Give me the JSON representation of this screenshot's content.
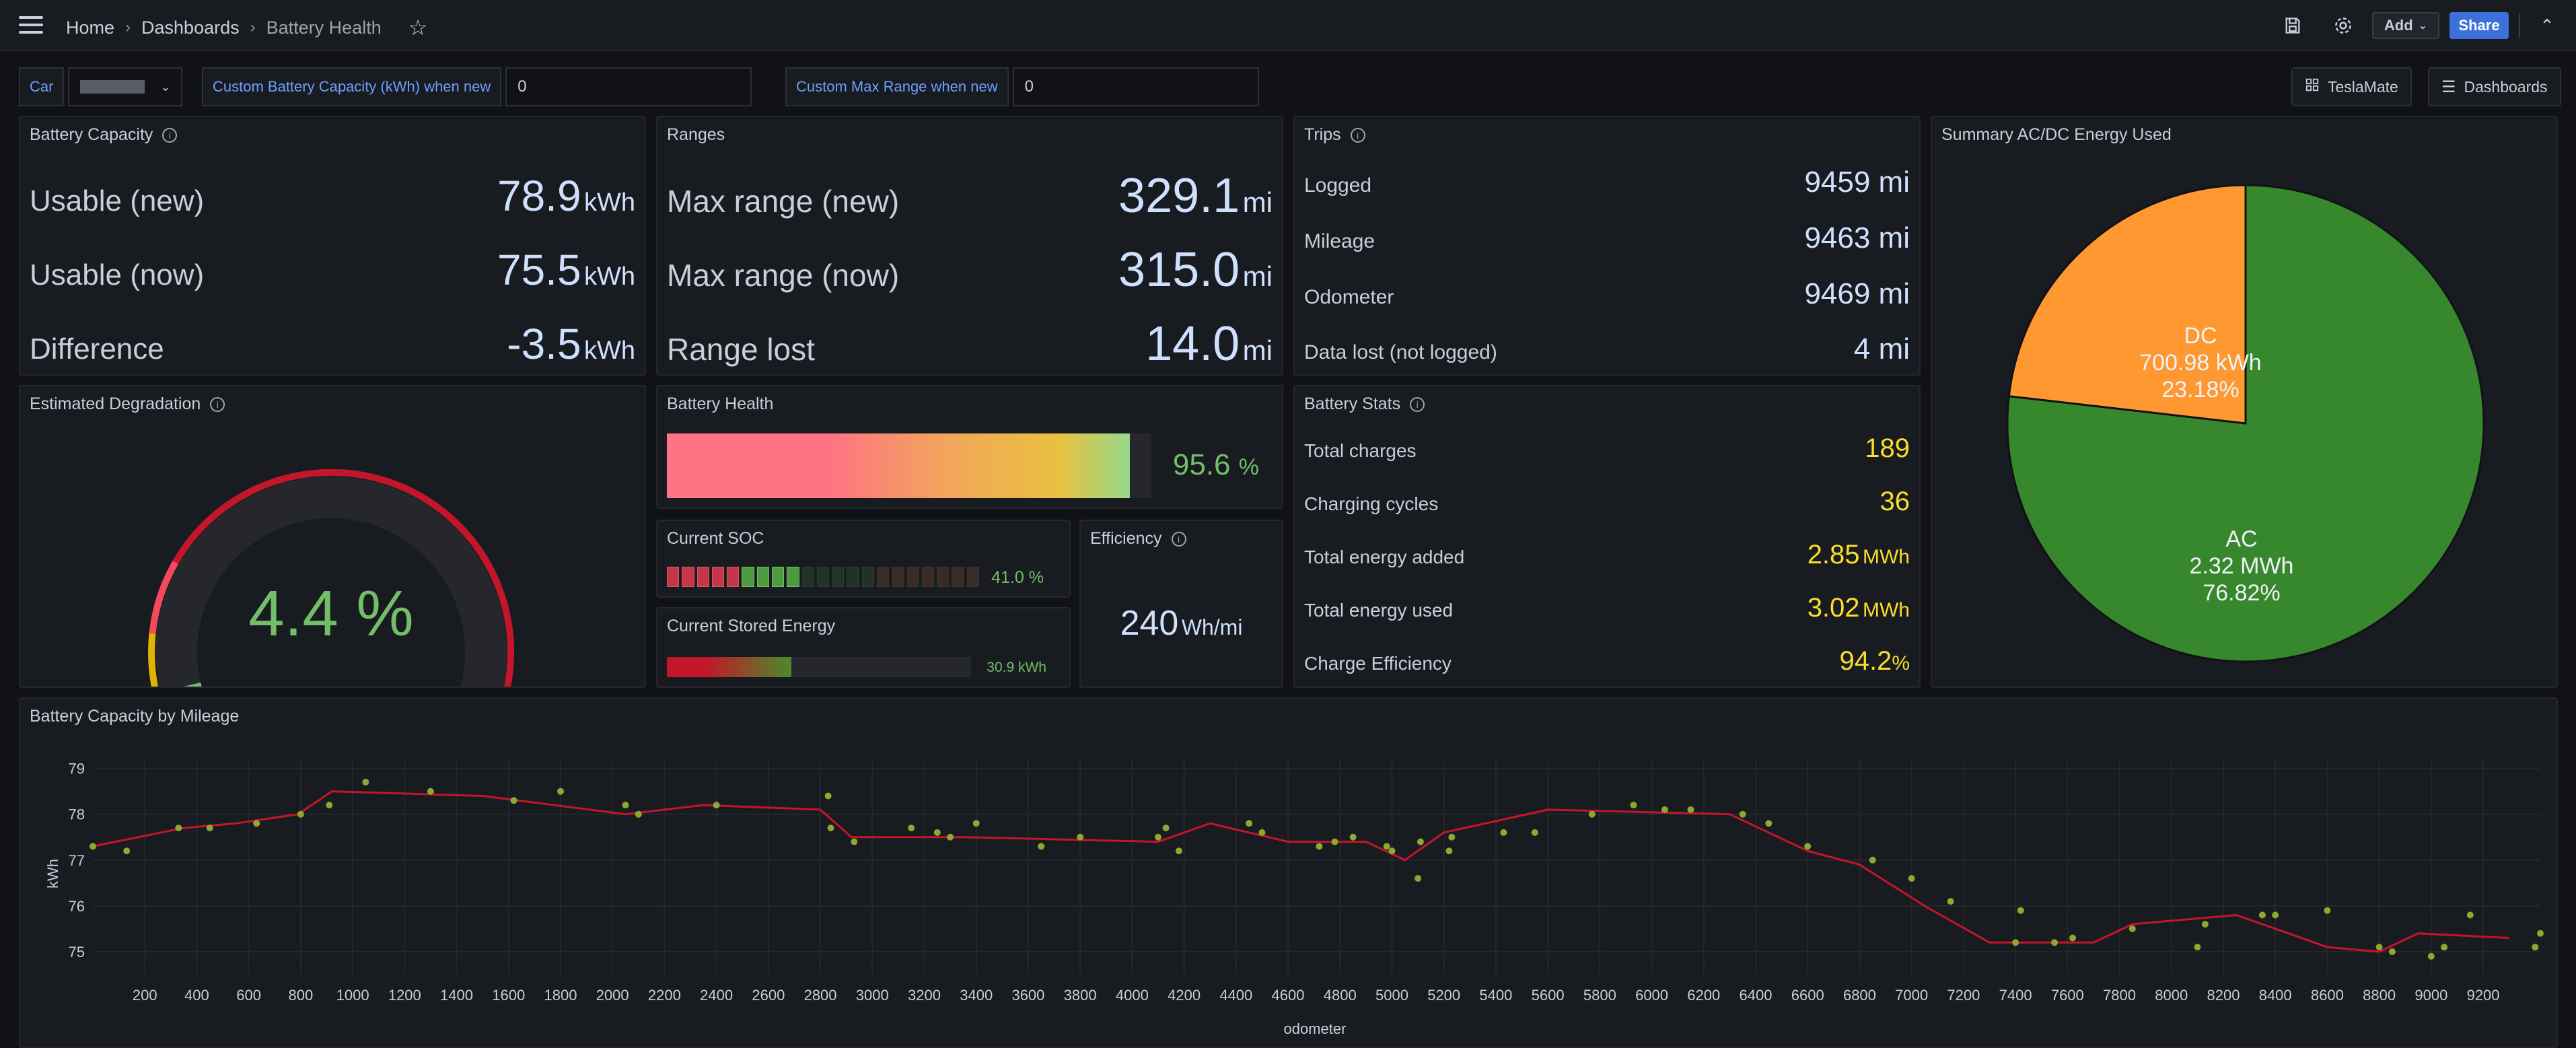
{
  "header": {
    "crumb_home": "Home",
    "crumb_dashboards": "Dashboards",
    "crumb_current": "Battery Health",
    "add_label": "Add",
    "share_label": "Share"
  },
  "vars": {
    "car_label": "Car",
    "car_value": "",
    "capacity_label": "Custom Battery Capacity (kWh) when new",
    "capacity_value": "0",
    "range_label": "Custom Max Range when new",
    "range_value": "0"
  },
  "links": {
    "teslamate": "TeslaMate",
    "dashboards": "Dashboards"
  },
  "capacity": {
    "title": "Battery Capacity",
    "rows": [
      {
        "label": "Usable (new)",
        "value": "78.9",
        "unit": "kWh"
      },
      {
        "label": "Usable (now)",
        "value": "75.5",
        "unit": "kWh"
      },
      {
        "label": "Difference",
        "value": "-3.5",
        "unit": "kWh"
      }
    ]
  },
  "ranges": {
    "title": "Ranges",
    "rows": [
      {
        "label": "Max range (new)",
        "value": "329.1",
        "unit": "mi"
      },
      {
        "label": "Max range (now)",
        "value": "315.0",
        "unit": "mi"
      },
      {
        "label": "Range lost",
        "value": "14.0",
        "unit": "mi"
      }
    ]
  },
  "trips": {
    "title": "Trips",
    "rows": [
      {
        "label": "Logged",
        "value": "9459 mi"
      },
      {
        "label": "Mileage",
        "value": "9463 mi"
      },
      {
        "label": "Odometer",
        "value": "9469 mi"
      },
      {
        "label": "Data lost (not logged)",
        "value": "4 mi"
      }
    ]
  },
  "summary": {
    "title": "Summary AC/DC Energy Used",
    "slices": [
      {
        "name": "AC",
        "value_text": "2.32 MWh",
        "pct_text": "76.82%",
        "pct": 76.82,
        "color": "#37872d"
      },
      {
        "name": "DC",
        "value_text": "700.98 kWh",
        "pct_text": "23.18%",
        "pct": 23.18,
        "color": "#ff9830"
      }
    ]
  },
  "degradation": {
    "title": "Estimated Degradation",
    "value": "4.4 %",
    "fraction": 0.044
  },
  "health": {
    "title": "Battery Health",
    "value": "95.6",
    "unit": "%",
    "fraction": 0.956
  },
  "soc": {
    "title": "Current SOC",
    "value": "41.0 %",
    "fraction": 0.41
  },
  "stored": {
    "title": "Current Stored Energy",
    "value": "30.9 kWh",
    "fraction": 0.41
  },
  "efficiency": {
    "title": "Efficiency",
    "value": "240",
    "unit": "Wh/mi"
  },
  "stats": {
    "title": "Battery Stats",
    "rows": [
      {
        "label": "Total charges",
        "value": "189",
        "unit": ""
      },
      {
        "label": "Charging cycles",
        "value": "36",
        "unit": ""
      },
      {
        "label": "Total energy added",
        "value": "2.85",
        "unit": "MWh"
      },
      {
        "label": "Total energy used",
        "value": "3.02",
        "unit": "MWh"
      },
      {
        "label": "Charge Efficiency",
        "value": "94.2",
        "unit": "%"
      }
    ]
  },
  "colors": {
    "accent": "#3d71d9",
    "green": "#73bf69",
    "yellow": "#fade2a",
    "red": "#c4162a",
    "blue_text": "#cfe0ff"
  },
  "chart_data": {
    "type": "line",
    "title": "Battery Capacity by Mileage",
    "xlabel": "odometer",
    "ylabel": "kWh",
    "xlim": [
      0,
      9420
    ],
    "ylim": [
      74.5,
      79.2
    ],
    "xticks": [
      "200",
      "400",
      "600",
      "800",
      "1000",
      "1200",
      "1400",
      "1600",
      "1800",
      "2000",
      "2200",
      "2400",
      "2600",
      "2800",
      "3000",
      "3200",
      "3400",
      "3600",
      "3800",
      "4000",
      "4200",
      "4400",
      "4600",
      "4800",
      "5000",
      "5200",
      "5400",
      "5600",
      "5800",
      "6000",
      "6200",
      "6400",
      "6600",
      "6800",
      "7000",
      "7200",
      "7400",
      "7600",
      "7800",
      "8000",
      "8200",
      "8400",
      "8600",
      "8800",
      "9000",
      "9200"
    ],
    "yticks": [
      "75",
      "76",
      "77",
      "78",
      "79"
    ],
    "line": [
      [
        0,
        77.3
      ],
      [
        350,
        77.7
      ],
      [
        550,
        77.8
      ],
      [
        790,
        78.0
      ],
      [
        920,
        78.5
      ],
      [
        1500,
        78.4
      ],
      [
        2050,
        78.0
      ],
      [
        2350,
        78.2
      ],
      [
        2800,
        78.1
      ],
      [
        2920,
        77.5
      ],
      [
        3350,
        77.5
      ],
      [
        4100,
        77.4
      ],
      [
        4300,
        77.8
      ],
      [
        4600,
        77.4
      ],
      [
        4900,
        77.4
      ],
      [
        5050,
        77.0
      ],
      [
        5200,
        77.6
      ],
      [
        5600,
        78.1
      ],
      [
        6300,
        78.0
      ],
      [
        6600,
        77.2
      ],
      [
        6800,
        76.9
      ],
      [
        7050,
        76.0
      ],
      [
        7300,
        75.2
      ],
      [
        7700,
        75.2
      ],
      [
        7850,
        75.6
      ],
      [
        8250,
        75.8
      ],
      [
        8600,
        75.1
      ],
      [
        8800,
        75.0
      ],
      [
        8950,
        75.4
      ],
      [
        9300,
        75.3
      ]
    ],
    "points": [
      [
        0,
        77.3
      ],
      [
        130,
        77.2
      ],
      [
        330,
        77.7
      ],
      [
        450,
        77.7
      ],
      [
        630,
        77.8
      ],
      [
        800,
        78.0
      ],
      [
        910,
        78.2
      ],
      [
        1050,
        78.7
      ],
      [
        1300,
        78.5
      ],
      [
        1620,
        78.3
      ],
      [
        1800,
        78.5
      ],
      [
        2050,
        78.2
      ],
      [
        2100,
        78.0
      ],
      [
        2400,
        78.2
      ],
      [
        2830,
        78.4
      ],
      [
        2840,
        77.7
      ],
      [
        2930,
        77.4
      ],
      [
        3150,
        77.7
      ],
      [
        3250,
        77.6
      ],
      [
        3300,
        77.5
      ],
      [
        3400,
        77.8
      ],
      [
        3650,
        77.3
      ],
      [
        3800,
        77.5
      ],
      [
        4100,
        77.5
      ],
      [
        4130,
        77.7
      ],
      [
        4180,
        77.2
      ],
      [
        4450,
        77.8
      ],
      [
        4500,
        77.6
      ],
      [
        4720,
        77.3
      ],
      [
        4780,
        77.4
      ],
      [
        4850,
        77.5
      ],
      [
        4980,
        77.3
      ],
      [
        5000,
        77.2
      ],
      [
        5100,
        76.6
      ],
      [
        5110,
        77.4
      ],
      [
        5220,
        77.2
      ],
      [
        5230,
        77.5
      ],
      [
        5430,
        77.6
      ],
      [
        5550,
        77.6
      ],
      [
        5770,
        78.0
      ],
      [
        5930,
        78.2
      ],
      [
        6050,
        78.1
      ],
      [
        6150,
        78.1
      ],
      [
        6350,
        78.0
      ],
      [
        6450,
        77.8
      ],
      [
        6600,
        77.3
      ],
      [
        6850,
        77.0
      ],
      [
        7000,
        76.6
      ],
      [
        7150,
        76.1
      ],
      [
        7400,
        75.2
      ],
      [
        7420,
        75.9
      ],
      [
        7550,
        75.2
      ],
      [
        7620,
        75.3
      ],
      [
        7850,
        75.5
      ],
      [
        8100,
        75.1
      ],
      [
        8130,
        75.6
      ],
      [
        8350,
        75.8
      ],
      [
        8400,
        75.8
      ],
      [
        8600,
        75.9
      ],
      [
        8800,
        75.1
      ],
      [
        8850,
        75.0
      ],
      [
        9000,
        74.9
      ],
      [
        9050,
        75.1
      ],
      [
        9150,
        75.8
      ],
      [
        9400,
        75.1
      ],
      [
        9420,
        75.4
      ]
    ]
  }
}
